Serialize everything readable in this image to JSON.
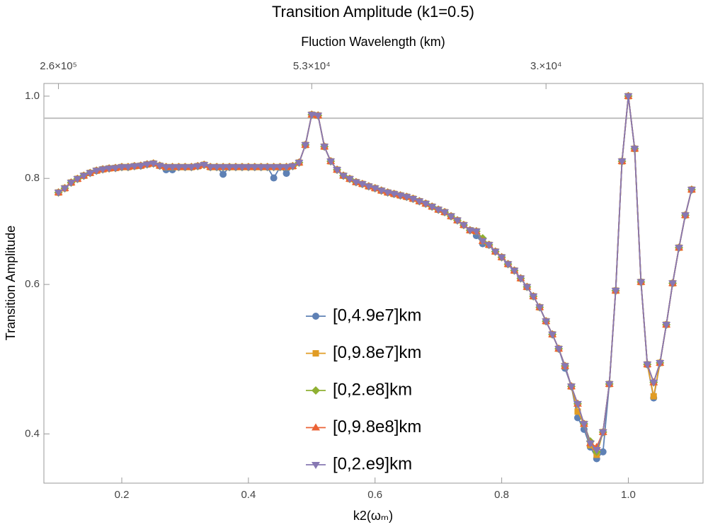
{
  "chart_data": {
    "type": "line",
    "title": "Transition Amplitude (k1=0.5)",
    "x_top_label": "Fluction Wavelength (km)",
    "x_label": "k2(ωₘ)",
    "y_label": "Transition Amplitude",
    "log_y": true,
    "xlim": [
      0.077,
      1.118
    ],
    "ylim": [
      0.35,
      1.035
    ],
    "xticks": [
      0.2,
      0.4,
      0.6,
      0.8,
      {
        "value": 1.0,
        "label": "1.0"
      }
    ],
    "yticks": [
      0.4,
      0.6,
      0.8,
      {
        "value": 1.0,
        "label": "1.0"
      }
    ],
    "x_top_ticks": [
      {
        "value": 0.1,
        "label": "2.6×10⁵"
      },
      {
        "value": 0.5,
        "label": "5.3×10⁴"
      },
      {
        "value": 0.87,
        "label": "3.×10⁴"
      }
    ],
    "hline": 0.942,
    "hline_color": "#c0c0c0",
    "legend": "center",
    "x": [
      0.1,
      0.11,
      0.12,
      0.13,
      0.14,
      0.15,
      0.16,
      0.17,
      0.18,
      0.19,
      0.2,
      0.21,
      0.22,
      0.23,
      0.24,
      0.25,
      0.26,
      0.27,
      0.28,
      0.29,
      0.3,
      0.31,
      0.32,
      0.33,
      0.34,
      0.35,
      0.36,
      0.37,
      0.38,
      0.39,
      0.4,
      0.41,
      0.42,
      0.43,
      0.44,
      0.45,
      0.46,
      0.47,
      0.48,
      0.49,
      0.5,
      0.51,
      0.52,
      0.53,
      0.54,
      0.55,
      0.56,
      0.57,
      0.58,
      0.59,
      0.6,
      0.61,
      0.62,
      0.63,
      0.64,
      0.65,
      0.66,
      0.67,
      0.68,
      0.69,
      0.7,
      0.71,
      0.72,
      0.73,
      0.74,
      0.75,
      0.76,
      0.77,
      0.78,
      0.79,
      0.8,
      0.81,
      0.82,
      0.83,
      0.84,
      0.85,
      0.86,
      0.87,
      0.88,
      0.89,
      0.9,
      0.91,
      0.92,
      0.93,
      0.94,
      0.95,
      0.96,
      0.97,
      0.98,
      0.99,
      1.0,
      1.01,
      1.02,
      1.03,
      1.04,
      1.05,
      1.06,
      1.07,
      1.08,
      1.09,
      1.1
    ],
    "series": [
      {
        "name": "[0,4.9e7]km",
        "color": "#5e81b5",
        "marker": "circle",
        "values": [
          0.77,
          0.779,
          0.791,
          0.799,
          0.806,
          0.812,
          0.817,
          0.82,
          0.822,
          0.823,
          0.825,
          0.825,
          0.827,
          0.828,
          0.831,
          0.833,
          0.828,
          0.819,
          0.819,
          0.825,
          0.825,
          0.825,
          0.827,
          0.83,
          0.825,
          0.825,
          0.809,
          0.825,
          0.825,
          0.825,
          0.825,
          0.825,
          0.825,
          0.825,
          0.801,
          0.825,
          0.811,
          0.827,
          0.835,
          0.876,
          0.951,
          0.949,
          0.872,
          0.838,
          0.819,
          0.806,
          0.799,
          0.792,
          0.788,
          0.783,
          0.779,
          0.774,
          0.77,
          0.767,
          0.764,
          0.761,
          0.757,
          0.752,
          0.747,
          0.741,
          0.735,
          0.73,
          0.722,
          0.714,
          0.705,
          0.695,
          0.685,
          0.67,
          0.668,
          0.656,
          0.646,
          0.634,
          0.623,
          0.61,
          0.596,
          0.581,
          0.564,
          0.543,
          0.524,
          0.504,
          0.478,
          0.455,
          0.418,
          0.405,
          0.386,
          0.374,
          0.381,
          0.458,
          0.59,
          0.838,
          1.0,
          0.867,
          0.604,
          0.483,
          0.441,
          0.485,
          0.538,
          0.602,
          0.663,
          0.724,
          0.776
        ]
      },
      {
        "name": "[0,9.8e7]km",
        "color": "#e19c24",
        "marker": "square",
        "values": [
          0.77,
          0.779,
          0.791,
          0.799,
          0.806,
          0.812,
          0.817,
          0.82,
          0.822,
          0.823,
          0.825,
          0.825,
          0.827,
          0.828,
          0.831,
          0.833,
          0.828,
          0.825,
          0.825,
          0.825,
          0.825,
          0.825,
          0.827,
          0.83,
          0.825,
          0.825,
          0.825,
          0.825,
          0.825,
          0.825,
          0.825,
          0.825,
          0.825,
          0.825,
          0.825,
          0.825,
          0.825,
          0.827,
          0.835,
          0.876,
          0.951,
          0.949,
          0.872,
          0.838,
          0.819,
          0.806,
          0.799,
          0.792,
          0.788,
          0.783,
          0.779,
          0.774,
          0.77,
          0.767,
          0.764,
          0.761,
          0.757,
          0.752,
          0.747,
          0.741,
          0.735,
          0.73,
          0.722,
          0.714,
          0.705,
          0.695,
          0.693,
          0.675,
          0.668,
          0.656,
          0.646,
          0.634,
          0.623,
          0.61,
          0.596,
          0.581,
          0.564,
          0.543,
          0.524,
          0.504,
          0.481,
          0.455,
          0.425,
          0.411,
          0.388,
          0.378,
          0.402,
          0.458,
          0.59,
          0.838,
          1.0,
          0.867,
          0.604,
          0.483,
          0.443,
          0.485,
          0.538,
          0.602,
          0.663,
          0.724,
          0.776
        ]
      },
      {
        "name": "[0,2.e8]km",
        "color": "#8fb032",
        "marker": "diamond",
        "values": [
          0.77,
          0.779,
          0.791,
          0.799,
          0.806,
          0.812,
          0.817,
          0.82,
          0.822,
          0.823,
          0.825,
          0.825,
          0.827,
          0.828,
          0.831,
          0.833,
          0.828,
          0.825,
          0.825,
          0.825,
          0.825,
          0.825,
          0.827,
          0.83,
          0.825,
          0.825,
          0.825,
          0.825,
          0.825,
          0.825,
          0.825,
          0.825,
          0.825,
          0.825,
          0.825,
          0.825,
          0.825,
          0.827,
          0.835,
          0.876,
          0.951,
          0.949,
          0.872,
          0.838,
          0.819,
          0.806,
          0.799,
          0.792,
          0.788,
          0.783,
          0.779,
          0.774,
          0.77,
          0.767,
          0.764,
          0.761,
          0.757,
          0.752,
          0.747,
          0.741,
          0.735,
          0.73,
          0.722,
          0.714,
          0.705,
          0.695,
          0.693,
          0.68,
          0.668,
          0.656,
          0.646,
          0.634,
          0.623,
          0.61,
          0.596,
          0.581,
          0.564,
          0.543,
          0.524,
          0.504,
          0.481,
          0.455,
          0.434,
          0.411,
          0.392,
          0.381,
          0.402,
          0.458,
          0.59,
          0.838,
          1.0,
          0.867,
          0.604,
          0.483,
          0.46,
          0.485,
          0.538,
          0.602,
          0.663,
          0.724,
          0.776
        ]
      },
      {
        "name": "[0,9.8e8]km",
        "color": "#eb6235",
        "marker": "triangle-up",
        "values": [
          0.77,
          0.779,
          0.791,
          0.799,
          0.806,
          0.812,
          0.817,
          0.82,
          0.822,
          0.823,
          0.825,
          0.825,
          0.827,
          0.828,
          0.831,
          0.833,
          0.828,
          0.825,
          0.825,
          0.825,
          0.825,
          0.825,
          0.827,
          0.83,
          0.825,
          0.825,
          0.825,
          0.825,
          0.825,
          0.825,
          0.825,
          0.825,
          0.825,
          0.825,
          0.825,
          0.825,
          0.825,
          0.827,
          0.835,
          0.876,
          0.951,
          0.949,
          0.872,
          0.838,
          0.819,
          0.806,
          0.799,
          0.792,
          0.788,
          0.783,
          0.779,
          0.774,
          0.77,
          0.767,
          0.764,
          0.761,
          0.757,
          0.752,
          0.747,
          0.741,
          0.735,
          0.73,
          0.722,
          0.714,
          0.705,
          0.695,
          0.693,
          0.675,
          0.668,
          0.656,
          0.646,
          0.634,
          0.623,
          0.61,
          0.596,
          0.581,
          0.564,
          0.543,
          0.524,
          0.504,
          0.481,
          0.455,
          0.434,
          0.411,
          0.39,
          0.386,
          0.402,
          0.458,
          0.59,
          0.838,
          1.0,
          0.867,
          0.604,
          0.483,
          0.46,
          0.485,
          0.538,
          0.602,
          0.663,
          0.724,
          0.776
        ]
      },
      {
        "name": "[0,2.e9]km",
        "color": "#8778b3",
        "marker": "triangle-down",
        "values": [
          0.77,
          0.779,
          0.791,
          0.799,
          0.806,
          0.812,
          0.817,
          0.82,
          0.822,
          0.823,
          0.825,
          0.825,
          0.827,
          0.828,
          0.831,
          0.833,
          0.828,
          0.825,
          0.825,
          0.825,
          0.825,
          0.825,
          0.827,
          0.83,
          0.825,
          0.825,
          0.825,
          0.825,
          0.825,
          0.825,
          0.825,
          0.825,
          0.825,
          0.825,
          0.825,
          0.825,
          0.825,
          0.827,
          0.835,
          0.876,
          0.951,
          0.949,
          0.872,
          0.838,
          0.819,
          0.806,
          0.799,
          0.792,
          0.788,
          0.783,
          0.779,
          0.774,
          0.77,
          0.767,
          0.764,
          0.761,
          0.757,
          0.752,
          0.747,
          0.741,
          0.735,
          0.73,
          0.722,
          0.714,
          0.705,
          0.695,
          0.693,
          0.675,
          0.668,
          0.656,
          0.646,
          0.634,
          0.623,
          0.61,
          0.596,
          0.581,
          0.564,
          0.543,
          0.524,
          0.504,
          0.481,
          0.455,
          0.434,
          0.411,
          0.39,
          0.383,
          0.402,
          0.458,
          0.59,
          0.838,
          1.0,
          0.867,
          0.604,
          0.483,
          0.46,
          0.485,
          0.538,
          0.602,
          0.663,
          0.724,
          0.776
        ]
      }
    ]
  }
}
